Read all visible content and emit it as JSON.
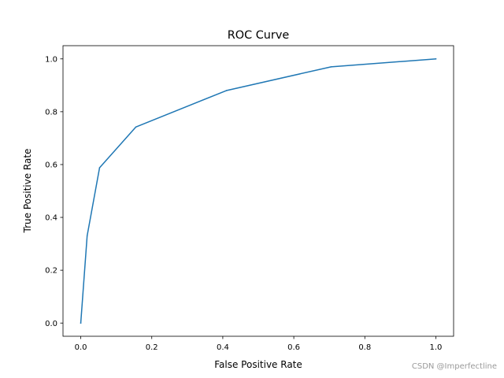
{
  "chart_data": {
    "type": "line",
    "title": "ROC Curve",
    "xlabel": "False Positive Rate",
    "ylabel": "True Positive Rate",
    "xlim": [
      -0.05,
      1.05
    ],
    "ylim": [
      -0.05,
      1.05
    ],
    "xticks": [
      0.0,
      0.2,
      0.4,
      0.6,
      0.8,
      1.0
    ],
    "yticks": [
      0.0,
      0.2,
      0.4,
      0.6,
      0.8,
      1.0
    ],
    "xtick_labels": [
      "0.0",
      "0.2",
      "0.4",
      "0.6",
      "0.8",
      "1.0"
    ],
    "ytick_labels": [
      "0.0",
      "0.2",
      "0.4",
      "0.6",
      "0.8",
      "1.0"
    ],
    "grid": false,
    "series": [
      {
        "name": "ROC",
        "color": "#1f77b4",
        "x": [
          0.0,
          0.018,
          0.053,
          0.155,
          0.41,
          0.705,
          1.0
        ],
        "y": [
          0.0,
          0.33,
          0.588,
          0.742,
          0.88,
          0.97,
          1.0
        ]
      }
    ]
  },
  "watermark": "CSDN @Imperfectline"
}
